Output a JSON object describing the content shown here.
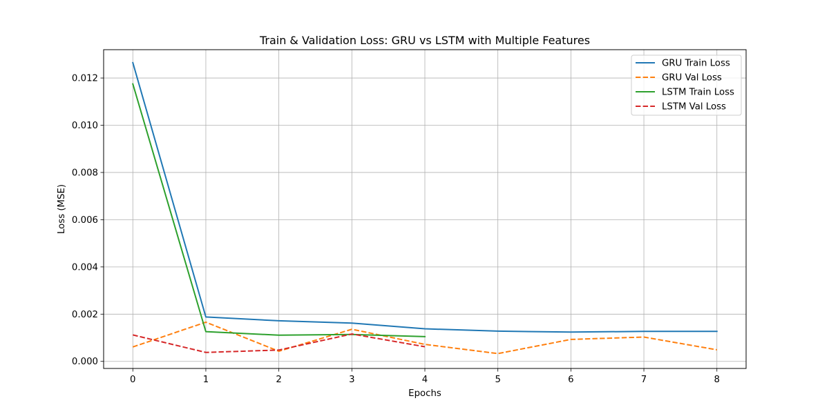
{
  "chart_data": {
    "type": "line",
    "title": "Train & Validation Loss: GRU vs LSTM with Multiple Features",
    "xlabel": "Epochs",
    "ylabel": "Loss (MSE)",
    "xlim": [
      -0.4,
      8.4
    ],
    "ylim": [
      -0.0003,
      0.0132
    ],
    "xticks": [
      0,
      1,
      2,
      3,
      4,
      5,
      6,
      7,
      8
    ],
    "xtick_labels": [
      "0",
      "1",
      "2",
      "3",
      "4",
      "5",
      "6",
      "7",
      "8"
    ],
    "yticks": [
      0.0,
      0.002,
      0.004,
      0.006,
      0.008,
      0.01,
      0.012
    ],
    "ytick_labels": [
      "0.000",
      "0.002",
      "0.004",
      "0.006",
      "0.008",
      "0.010",
      "0.012"
    ],
    "grid": true,
    "legend_position": "top-right",
    "series": [
      {
        "name": "GRU Train Loss",
        "color": "#1f77b4",
        "dashed": false,
        "x": [
          0,
          1,
          2,
          3,
          4,
          5,
          6,
          7,
          8
        ],
        "values": [
          0.01265,
          0.00188,
          0.00172,
          0.00162,
          0.00138,
          0.00128,
          0.00124,
          0.00127,
          0.00127
        ]
      },
      {
        "name": "GRU Val Loss",
        "color": "#ff7f0e",
        "dashed": true,
        "x": [
          0,
          1,
          2,
          3,
          4,
          5,
          6,
          7,
          8
        ],
        "values": [
          0.00061,
          0.00166,
          0.00043,
          0.00136,
          0.00072,
          0.00033,
          0.00093,
          0.00103,
          0.00049
        ]
      },
      {
        "name": "LSTM Train Loss",
        "color": "#2ca02c",
        "dashed": false,
        "x": [
          0,
          1,
          2,
          3,
          4
        ],
        "values": [
          0.01175,
          0.00126,
          0.00111,
          0.00114,
          0.00105
        ]
      },
      {
        "name": "LSTM Val Loss",
        "color": "#d62728",
        "dashed": true,
        "x": [
          0,
          1,
          2,
          3,
          4
        ],
        "values": [
          0.00112,
          0.00038,
          0.00048,
          0.00116,
          0.00062
        ]
      }
    ]
  }
}
